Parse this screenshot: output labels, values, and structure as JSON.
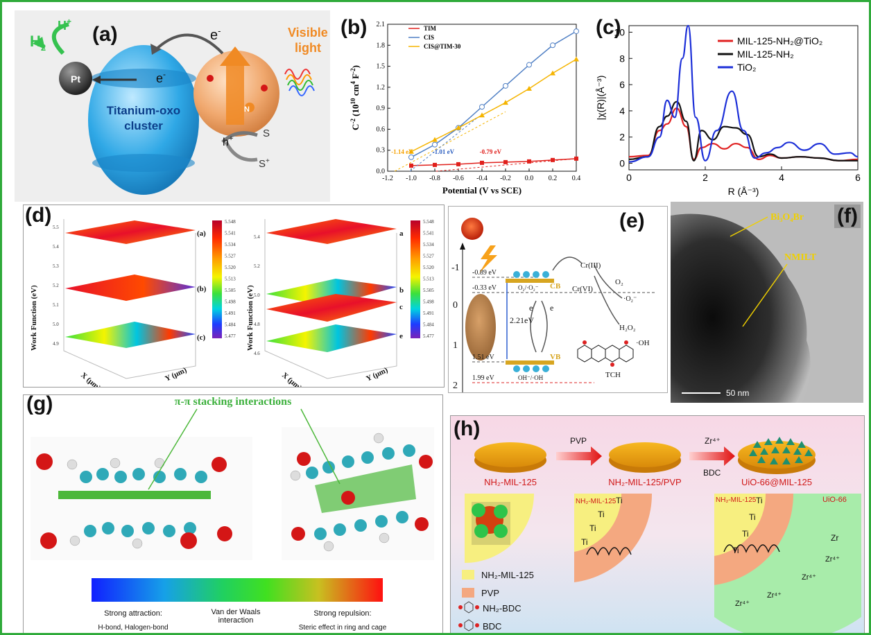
{
  "colors": {
    "border": "#2faa3a"
  },
  "panel_a": {
    "label": "(a)",
    "h2": "H",
    "h2_sub": "2",
    "hplus": "H",
    "hplus_sup": "+",
    "pt": "Pt",
    "electron_top": "e",
    "electron_left": "e",
    "cluster_line1": "Titanium-oxo",
    "cluster_line2": "cluster",
    "visible_line1": "Visible",
    "visible_line2": "light",
    "hole": "h",
    "n_atom": "N",
    "s": "S",
    "s_plus": "S",
    "minus": "-",
    "plus": "+"
  },
  "panel_b": {
    "label": "(b)",
    "legend": [
      "TIM",
      "CIS",
      "CIS@TIM-30"
    ],
    "xlabel": "Potential (V vs SCE)",
    "ylabel_main": "C",
    "ylabel_mid": " (10",
    "ylabel_unit": " cm",
    "ylabel_end": " F",
    "ylabel_sup1": "-2",
    "ylabel_sup2": "10",
    "ylabel_sup3": "4",
    "ylabel_sup4": "-2",
    "ylabel_close": ")",
    "ann": [
      "-1.14 eV",
      "-1.01 eV",
      "-0.79 eV"
    ]
  },
  "panel_c": {
    "label": "(c)",
    "legend": [
      "MIL-125-NH₂@TiO₂",
      "MIL-125-NH₂",
      "TiO₂"
    ],
    "xlabel": "R (Å⁻³)",
    "ylabel": "|χ(R)|(Å⁻³)"
  },
  "panel_d": {
    "label": "(d)",
    "ylabel": "Work Function (eV)",
    "xlabel": "X (μm)",
    "ylabel2": "Y (μm)",
    "layers_left": [
      "(a)",
      "(b)",
      "(c)"
    ],
    "layers_right": [
      "a",
      "b",
      "c",
      "e"
    ],
    "cbar": [
      "5.548",
      "5.541",
      "5.534",
      "5.527",
      "5.520",
      "5.513",
      "5.505",
      "5.498",
      "5.491",
      "5.484",
      "5.477"
    ],
    "yticks_left": [
      "5.5",
      "5.4",
      "5.3",
      "5.2",
      "5.1",
      "5.0",
      "4.9"
    ],
    "yticks_right": [
      "5.4",
      "5.2",
      "5.0",
      "4.8",
      "4.6"
    ]
  },
  "panel_e": {
    "label": "(e)",
    "ticks": [
      "-1",
      "0",
      "1",
      "2"
    ],
    "levels": [
      "-0.89 eV",
      "-0.33 eV",
      "1.51 eV",
      "1.99 eV"
    ],
    "cb": "CB",
    "vb": "VB",
    "gap": "2.21eV",
    "e1": "e",
    "e2": "e",
    "o2pair": "O₂/·O₂⁻",
    "ohpair": "OH⁻/·OH",
    "cr3": "Cr(III)",
    "cr6": "Cr(VI)",
    "o2": "O₂",
    "o2rad": "·O₂⁻",
    "h2o2": "H₂O₂",
    "oh": "·OH",
    "tch": "TCH"
  },
  "panel_f": {
    "label": "(f)",
    "bi": "Bi₃O₄Br",
    "nmilt": "NMILT",
    "scale": "50 nm"
  },
  "panel_g": {
    "label": "(g)",
    "title": "π-π stacking interactions",
    "scale": [
      "Strong attraction:",
      "Van der Waals",
      "interaction",
      "Strong repulsion:"
    ],
    "scale2": [
      "H-bond, Halogen-bond",
      "Steric effect in ring and cage"
    ]
  },
  "panel_h": {
    "label": "(h)",
    "arrow1": "PVP",
    "arrow2": "Zr⁴⁺",
    "arrow2b": "BDC",
    "names": [
      "NH₂-MIL-125",
      "NH₂-MIL-125/PVP",
      "UiO-66@MIL-125"
    ],
    "inner_labels": [
      "NH₂-MIL-125",
      "NH₂-MIL-125",
      "UiO-66"
    ],
    "ti": "Ti",
    "zr": "Zr",
    "zr4": "Zr⁴⁺",
    "legend": [
      "NH₂-MIL-125",
      "PVP",
      "NH₂-BDC",
      "BDC"
    ]
  },
  "chart_data": [
    {
      "type": "line",
      "title": "",
      "xlabel": "Potential (V vs SCE)",
      "ylabel": "C-2 (10^10 cm^4 F^-2)",
      "xlim": [
        -1.2,
        0.4
      ],
      "ylim": [
        0.0,
        2.1
      ],
      "xticks": [
        "-1.2",
        "-1.0",
        "-0.8",
        "-0.6",
        "-0.4",
        "-0.2",
        "0.0",
        "0.2",
        "0.4"
      ],
      "yticks": [
        "0.0",
        "0.3",
        "0.6",
        "0.9",
        "1.2",
        "1.5",
        "1.8",
        "2.1"
      ],
      "series": [
        {
          "name": "TIM",
          "color": "#e0201c",
          "x": [
            -1.0,
            -0.8,
            -0.6,
            -0.4,
            -0.2,
            0.0,
            0.2,
            0.4
          ],
          "y": [
            0.08,
            0.09,
            0.1,
            0.12,
            0.13,
            0.14,
            0.16,
            0.18
          ]
        },
        {
          "name": "CIS",
          "color": "#4f7fc4",
          "x": [
            -1.0,
            -0.8,
            -0.6,
            -0.4,
            -0.2,
            0.0,
            0.2,
            0.4
          ],
          "y": [
            0.2,
            0.38,
            0.62,
            0.92,
            1.22,
            1.52,
            1.8,
            2.0
          ]
        },
        {
          "name": "CIS@TIM-30",
          "color": "#f5b400",
          "x": [
            -1.0,
            -0.8,
            -0.6,
            -0.4,
            -0.2,
            0.0,
            0.2,
            0.4
          ],
          "y": [
            0.28,
            0.45,
            0.62,
            0.8,
            0.98,
            1.18,
            1.4,
            1.6
          ]
        }
      ]
    },
    {
      "type": "line",
      "title": "",
      "xlabel": "R (Å⁻³)",
      "ylabel": "|χ(R)|(Å⁻³)",
      "xlim": [
        0,
        6
      ],
      "ylim": [
        -0.5,
        10.5
      ],
      "xticks": [
        "0",
        "2",
        "4",
        "6"
      ],
      "yticks": [
        "0",
        "2",
        "4",
        "6",
        "8",
        "10"
      ],
      "series": [
        {
          "name": "MIL-125-NH₂@TiO₂",
          "color": "#e02020",
          "x": [
            0,
            0.5,
            0.8,
            1.0,
            1.25,
            1.5,
            1.7,
            1.9,
            2.2,
            2.5,
            2.8,
            3.1,
            3.4,
            3.7,
            4.0,
            4.5,
            5.0,
            5.5,
            6.0
          ],
          "y": [
            0.5,
            0.6,
            2.5,
            3.0,
            4.2,
            2.8,
            0.3,
            1.2,
            1.5,
            1.1,
            1.5,
            1.2,
            0.3,
            0.6,
            0.4,
            0.5,
            0.4,
            0.2,
            0.3
          ]
        },
        {
          "name": "MIL-125-NH₂",
          "color": "#111111",
          "x": [
            0,
            0.5,
            0.8,
            1.0,
            1.25,
            1.5,
            1.7,
            1.9,
            2.2,
            2.5,
            2.8,
            3.1,
            3.4,
            3.7,
            4.0,
            4.5,
            5.0,
            5.5,
            6.0
          ],
          "y": [
            0.3,
            0.5,
            2.8,
            3.6,
            4.7,
            3.2,
            0.2,
            2.5,
            1.8,
            2.8,
            2.7,
            2.2,
            0.5,
            0.7,
            0.4,
            0.5,
            0.4,
            0.2,
            0.2
          ]
        },
        {
          "name": "TiO₂",
          "color": "#1c2fd8",
          "x": [
            0,
            0.5,
            0.8,
            1.0,
            1.2,
            1.4,
            1.55,
            1.75,
            2.0,
            2.3,
            2.7,
            3.0,
            3.3,
            3.6,
            3.9,
            4.2,
            4.6,
            5.0,
            5.4,
            5.8,
            6.0
          ],
          "y": [
            0.1,
            0.5,
            2.0,
            4.8,
            3.5,
            8.0,
            10.5,
            3.5,
            0.2,
            2.5,
            5.5,
            2.5,
            0.4,
            0.8,
            1.2,
            1.6,
            1.0,
            1.5,
            0.7,
            0.8,
            0.5
          ]
        }
      ]
    }
  ]
}
